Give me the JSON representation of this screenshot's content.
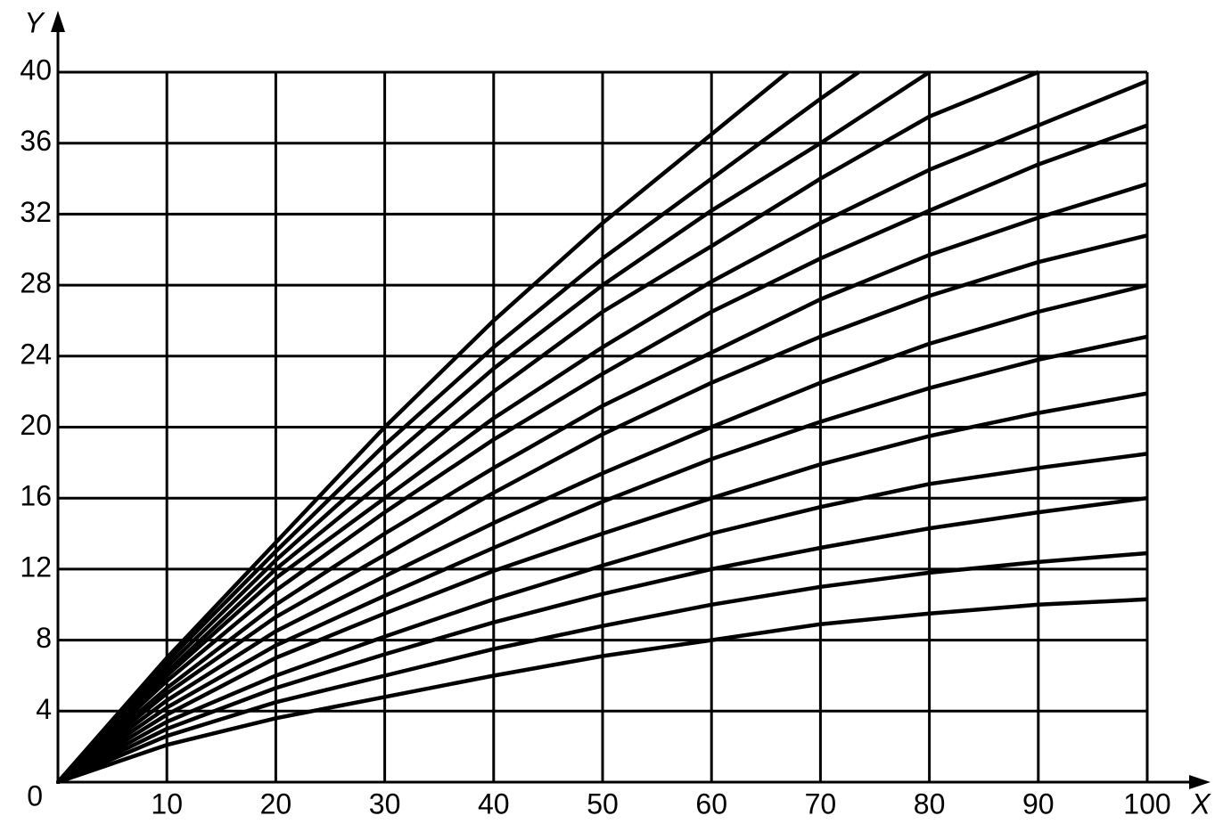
{
  "chart_data": {
    "type": "line",
    "x_label": "X",
    "y_label": "Y",
    "xlim": [
      0,
      100
    ],
    "ylim": [
      0,
      40
    ],
    "xticks": [
      10,
      20,
      30,
      40,
      50,
      60,
      70,
      80,
      90,
      100
    ],
    "yticks": [
      0,
      4,
      8,
      12,
      16,
      20,
      24,
      28,
      32,
      36,
      40
    ],
    "grid": true,
    "series": [
      {
        "color": "#000000",
        "x": [
          0,
          10,
          20,
          30,
          40,
          50,
          60,
          67
        ],
        "values": [
          0,
          7,
          13.5,
          20,
          26,
          31.5,
          36.5,
          40
        ]
      },
      {
        "color": "#000000",
        "x": [
          0,
          10,
          20,
          30,
          40,
          50,
          60,
          70,
          73.5
        ],
        "values": [
          0,
          6.8,
          13,
          19,
          24.5,
          29.5,
          34,
          38.5,
          40
        ]
      },
      {
        "color": "#000000",
        "x": [
          0,
          10,
          20,
          30,
          40,
          50,
          60,
          70,
          80
        ],
        "values": [
          0,
          6.5,
          12.5,
          18,
          23.3,
          28,
          32.2,
          36,
          40
        ]
      },
      {
        "color": "#000000",
        "x": [
          0,
          10,
          20,
          30,
          40,
          50,
          60,
          70,
          80,
          90
        ],
        "values": [
          0,
          6.2,
          12,
          17,
          22,
          26.5,
          30.2,
          34,
          37.5,
          40
        ]
      },
      {
        "color": "#000000",
        "x": [
          0,
          10,
          20,
          30,
          40,
          50,
          60,
          70,
          80,
          90,
          100
        ],
        "values": [
          0,
          6,
          11.5,
          16,
          20.5,
          24.5,
          28.2,
          31.5,
          34.5,
          37,
          39.5
        ]
      },
      {
        "color": "#000000",
        "x": [
          0,
          10,
          20,
          30,
          40,
          50,
          60,
          70,
          80,
          90,
          100
        ],
        "values": [
          0,
          5.7,
          10.8,
          15.2,
          19.3,
          23,
          26.5,
          29.5,
          32.2,
          34.8,
          37
        ]
      },
      {
        "color": "#000000",
        "x": [
          0,
          10,
          20,
          30,
          40,
          50,
          60,
          70,
          80,
          90,
          100
        ],
        "values": [
          0,
          5.3,
          10,
          14,
          17.7,
          21.2,
          24.2,
          27.2,
          29.7,
          31.8,
          33.7
        ]
      },
      {
        "color": "#000000",
        "x": [
          0,
          10,
          20,
          30,
          40,
          50,
          60,
          70,
          80,
          90,
          100
        ],
        "values": [
          0,
          5,
          9.3,
          12.8,
          16.3,
          19.6,
          22.5,
          25.1,
          27.4,
          29.3,
          30.8
        ]
      },
      {
        "color": "#000000",
        "x": [
          0,
          10,
          20,
          30,
          40,
          50,
          60,
          70,
          80,
          90,
          100
        ],
        "values": [
          0,
          4.6,
          8.5,
          11.6,
          14.6,
          17.4,
          20,
          22.5,
          24.7,
          26.5,
          28
        ]
      },
      {
        "color": "#000000",
        "x": [
          0,
          10,
          20,
          30,
          40,
          50,
          60,
          70,
          80,
          90,
          100
        ],
        "values": [
          0,
          4.2,
          7.7,
          10.5,
          13.2,
          15.8,
          18.2,
          20.3,
          22.2,
          23.8,
          25.1
        ]
      },
      {
        "color": "#000000",
        "x": [
          0,
          10,
          20,
          30,
          40,
          50,
          60,
          70,
          80,
          90,
          100
        ],
        "values": [
          0,
          3.8,
          7,
          9.5,
          11.9,
          14,
          16,
          17.9,
          19.5,
          20.8,
          21.9
        ]
      },
      {
        "color": "#000000",
        "x": [
          0,
          10,
          20,
          30,
          40,
          50,
          60,
          70,
          80,
          90,
          100
        ],
        "values": [
          0,
          3.4,
          6,
          8.2,
          10.3,
          12.2,
          14,
          15.5,
          16.8,
          17.7,
          18.5
        ]
      },
      {
        "color": "#000000",
        "x": [
          0,
          10,
          20,
          30,
          40,
          50,
          60,
          70,
          80,
          90,
          100
        ],
        "values": [
          0,
          3,
          5.3,
          7.2,
          9,
          10.6,
          12,
          13.2,
          14.3,
          15.2,
          16
        ]
      },
      {
        "color": "#000000",
        "x": [
          0,
          10,
          20,
          30,
          40,
          50,
          60,
          70,
          80,
          90,
          100
        ],
        "values": [
          0,
          2.6,
          4.5,
          6,
          7.5,
          8.8,
          10,
          11,
          11.8,
          12.4,
          12.9
        ]
      },
      {
        "color": "#000000",
        "x": [
          0,
          10,
          20,
          30,
          40,
          50,
          60,
          70,
          80,
          90,
          100
        ],
        "values": [
          0,
          2.1,
          3.6,
          4.8,
          6,
          7.1,
          8,
          8.9,
          9.5,
          10,
          10.3
        ]
      }
    ]
  }
}
